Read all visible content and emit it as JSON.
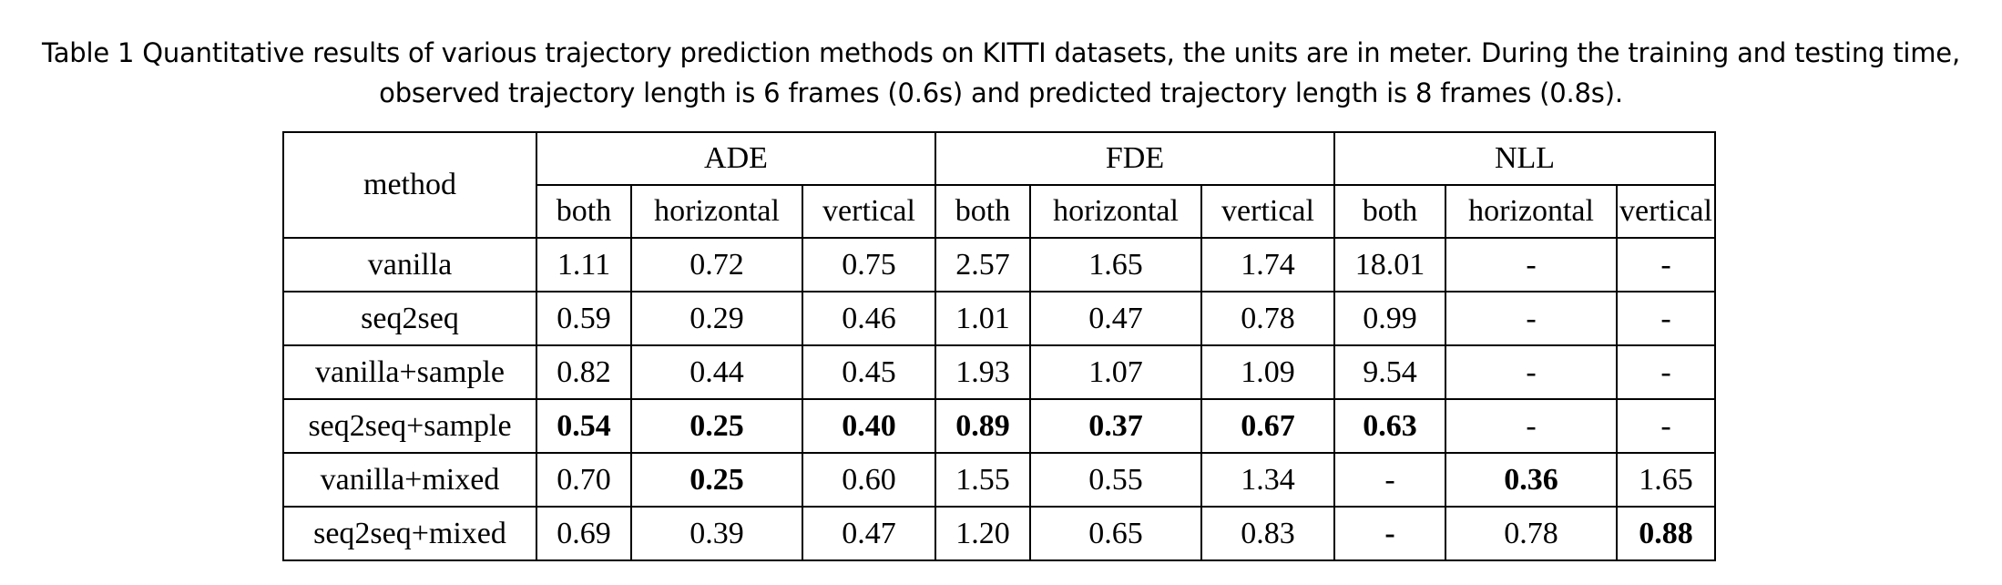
{
  "caption": {
    "line1": "Table 1 Quantitative results of various trajectory prediction methods on KITTI datasets, the units are in meter. During the training and testing time,",
    "line2": "observed trajectory length is 6 frames (0.6s) and predicted trajectory length is 8 frames (0.8s)."
  },
  "table": {
    "method_header": "method",
    "groups": [
      "ADE",
      "FDE",
      "NLL"
    ],
    "subheaders": [
      "both",
      "horizontal",
      "vertical",
      "both",
      "horizontal",
      "vertical",
      "both",
      "horizontal",
      "vertical"
    ],
    "rows": [
      {
        "method": "vanilla",
        "cells": [
          "1.11",
          "0.72",
          "0.75",
          "2.57",
          "1.65",
          "1.74",
          "18.01",
          "-",
          "-"
        ],
        "bold": [
          false,
          false,
          false,
          false,
          false,
          false,
          false,
          false,
          false
        ]
      },
      {
        "method": "seq2seq",
        "cells": [
          "0.59",
          "0.29",
          "0.46",
          "1.01",
          "0.47",
          "0.78",
          "0.99",
          "-",
          "-"
        ],
        "bold": [
          false,
          false,
          false,
          false,
          false,
          false,
          false,
          false,
          false
        ]
      },
      {
        "method": "vanilla+sample",
        "cells": [
          "0.82",
          "0.44",
          "0.45",
          "1.93",
          "1.07",
          "1.09",
          "9.54",
          "-",
          "-"
        ],
        "bold": [
          false,
          false,
          false,
          false,
          false,
          false,
          false,
          false,
          false
        ]
      },
      {
        "method": "seq2seq+sample",
        "cells": [
          "0.54",
          "0.25",
          "0.40",
          "0.89",
          "0.37",
          "0.67",
          "0.63",
          "-",
          "-"
        ],
        "bold": [
          true,
          true,
          true,
          true,
          true,
          true,
          true,
          false,
          false
        ]
      },
      {
        "method": "vanilla+mixed",
        "cells": [
          "0.70",
          "0.25",
          "0.60",
          "1.55",
          "0.55",
          "1.34",
          "-",
          "0.36",
          "1.65"
        ],
        "bold": [
          false,
          true,
          false,
          false,
          false,
          false,
          false,
          true,
          false
        ]
      },
      {
        "method": "seq2seq+mixed",
        "cells": [
          "0.69",
          "0.39",
          "0.47",
          "1.20",
          "0.65",
          "0.83",
          "-",
          "0.78",
          "0.88"
        ],
        "bold": [
          false,
          false,
          false,
          false,
          false,
          false,
          true,
          false,
          true
        ]
      }
    ]
  }
}
